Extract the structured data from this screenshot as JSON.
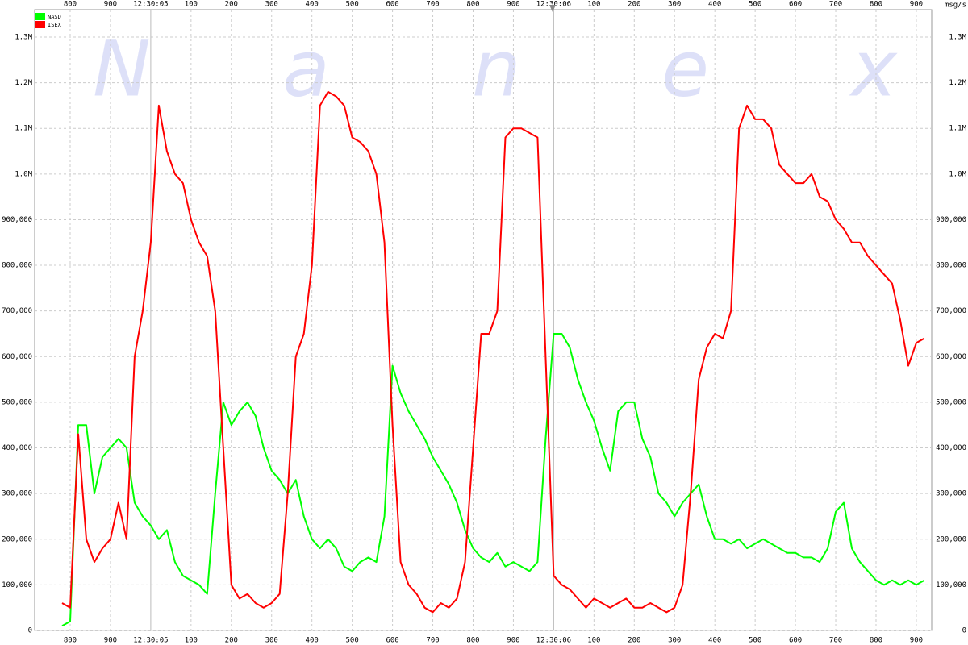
{
  "chart_data": {
    "type": "line",
    "watermark": [
      "N",
      "a",
      "n",
      "e",
      "x"
    ],
    "y_unit": "msg/s",
    "categories": [
      null,
      "800",
      null,
      null,
      null,
      null,
      "900",
      null,
      null,
      null,
      null,
      "12:30:05",
      null,
      null,
      null,
      null,
      "100",
      null,
      null,
      null,
      null,
      "200",
      null,
      null,
      null,
      null,
      "300",
      null,
      null,
      null,
      null,
      "400",
      null,
      null,
      null,
      null,
      "500",
      null,
      null,
      null,
      null,
      "600",
      null,
      null,
      null,
      null,
      "700",
      null,
      null,
      null,
      null,
      "800",
      null,
      null,
      null,
      null,
      "900",
      null,
      null,
      null,
      null,
      "12:30:06",
      null,
      null,
      null,
      null,
      "100",
      null,
      null,
      null,
      null,
      "200",
      null,
      null,
      null,
      null,
      "300",
      null,
      null,
      null,
      null,
      "400",
      null,
      null,
      null,
      null,
      "500",
      null,
      null,
      null,
      null,
      "600",
      null,
      null,
      null,
      null,
      "700",
      null,
      null,
      null,
      null,
      "800",
      null,
      null,
      null,
      null,
      "900",
      null
    ],
    "series": [
      {
        "name": "NASD",
        "color": "#00ff00",
        "values": [
          10000,
          20000,
          450000,
          450000,
          300000,
          380000,
          400000,
          420000,
          400000,
          280000,
          250000,
          230000,
          200000,
          220000,
          150000,
          120000,
          110000,
          100000,
          80000,
          300000,
          500000,
          450000,
          480000,
          500000,
          470000,
          400000,
          350000,
          330000,
          300000,
          330000,
          250000,
          200000,
          180000,
          200000,
          180000,
          140000,
          130000,
          150000,
          160000,
          150000,
          250000,
          580000,
          520000,
          480000,
          450000,
          420000,
          380000,
          350000,
          320000,
          280000,
          220000,
          180000,
          160000,
          150000,
          170000,
          140000,
          150000,
          140000,
          130000,
          150000,
          420000,
          650000,
          650000,
          620000,
          550000,
          500000,
          460000,
          400000,
          350000,
          480000,
          500000,
          500000,
          420000,
          380000,
          300000,
          280000,
          250000,
          280000,
          300000,
          320000,
          250000,
          200000,
          200000,
          190000,
          200000,
          180000,
          190000,
          200000,
          190000,
          180000,
          170000,
          170000,
          160000,
          160000,
          150000,
          180000,
          260000,
          280000,
          180000,
          150000,
          130000,
          110000,
          100000,
          110000,
          100000,
          110000,
          100000,
          110000
        ]
      },
      {
        "name": "ISEX",
        "color": "#ff0000",
        "values": [
          60000,
          50000,
          430000,
          200000,
          150000,
          180000,
          200000,
          280000,
          200000,
          600000,
          700000,
          850000,
          1150000,
          1050000,
          1000000,
          980000,
          900000,
          850000,
          820000,
          700000,
          400000,
          100000,
          70000,
          80000,
          60000,
          50000,
          60000,
          80000,
          300000,
          600000,
          650000,
          800000,
          1150000,
          1180000,
          1170000,
          1150000,
          1080000,
          1070000,
          1050000,
          1000000,
          850000,
          450000,
          150000,
          100000,
          80000,
          50000,
          40000,
          60000,
          50000,
          70000,
          150000,
          400000,
          650000,
          650000,
          700000,
          1080000,
          1100000,
          1100000,
          1090000,
          1080000,
          600000,
          120000,
          100000,
          90000,
          70000,
          50000,
          70000,
          60000,
          50000,
          60000,
          70000,
          50000,
          50000,
          60000,
          50000,
          40000,
          50000,
          100000,
          300000,
          550000,
          620000,
          650000,
          640000,
          700000,
          1100000,
          1150000,
          1120000,
          1120000,
          1100000,
          1020000,
          1000000,
          980000,
          980000,
          1000000,
          950000,
          940000,
          900000,
          880000,
          850000,
          850000,
          820000,
          800000,
          780000,
          760000,
          680000,
          580000,
          630000,
          640000
        ]
      }
    ],
    "ylim": [
      0,
      1360000
    ],
    "yticks": [
      0,
      {
        "value": 100000,
        "label": "100,000"
      },
      {
        "value": 200000,
        "label": "200,000"
      },
      {
        "value": 300000,
        "label": "300,000"
      },
      {
        "value": 400000,
        "label": "400,000"
      },
      {
        "value": 500000,
        "label": "500,000"
      },
      {
        "value": 600000,
        "label": "600,000"
      },
      {
        "value": 700000,
        "label": "700,000"
      },
      {
        "value": 800000,
        "label": "800,000"
      },
      {
        "value": 900000,
        "label": "900,000"
      },
      {
        "value": 1000000,
        "label": "1.0M"
      },
      {
        "value": 1100000,
        "label": "1.1M"
      },
      {
        "value": 1200000,
        "label": "1.2M"
      },
      {
        "value": 1300000,
        "label": "1.3M"
      }
    ],
    "grid": true,
    "legend": "top-left"
  }
}
